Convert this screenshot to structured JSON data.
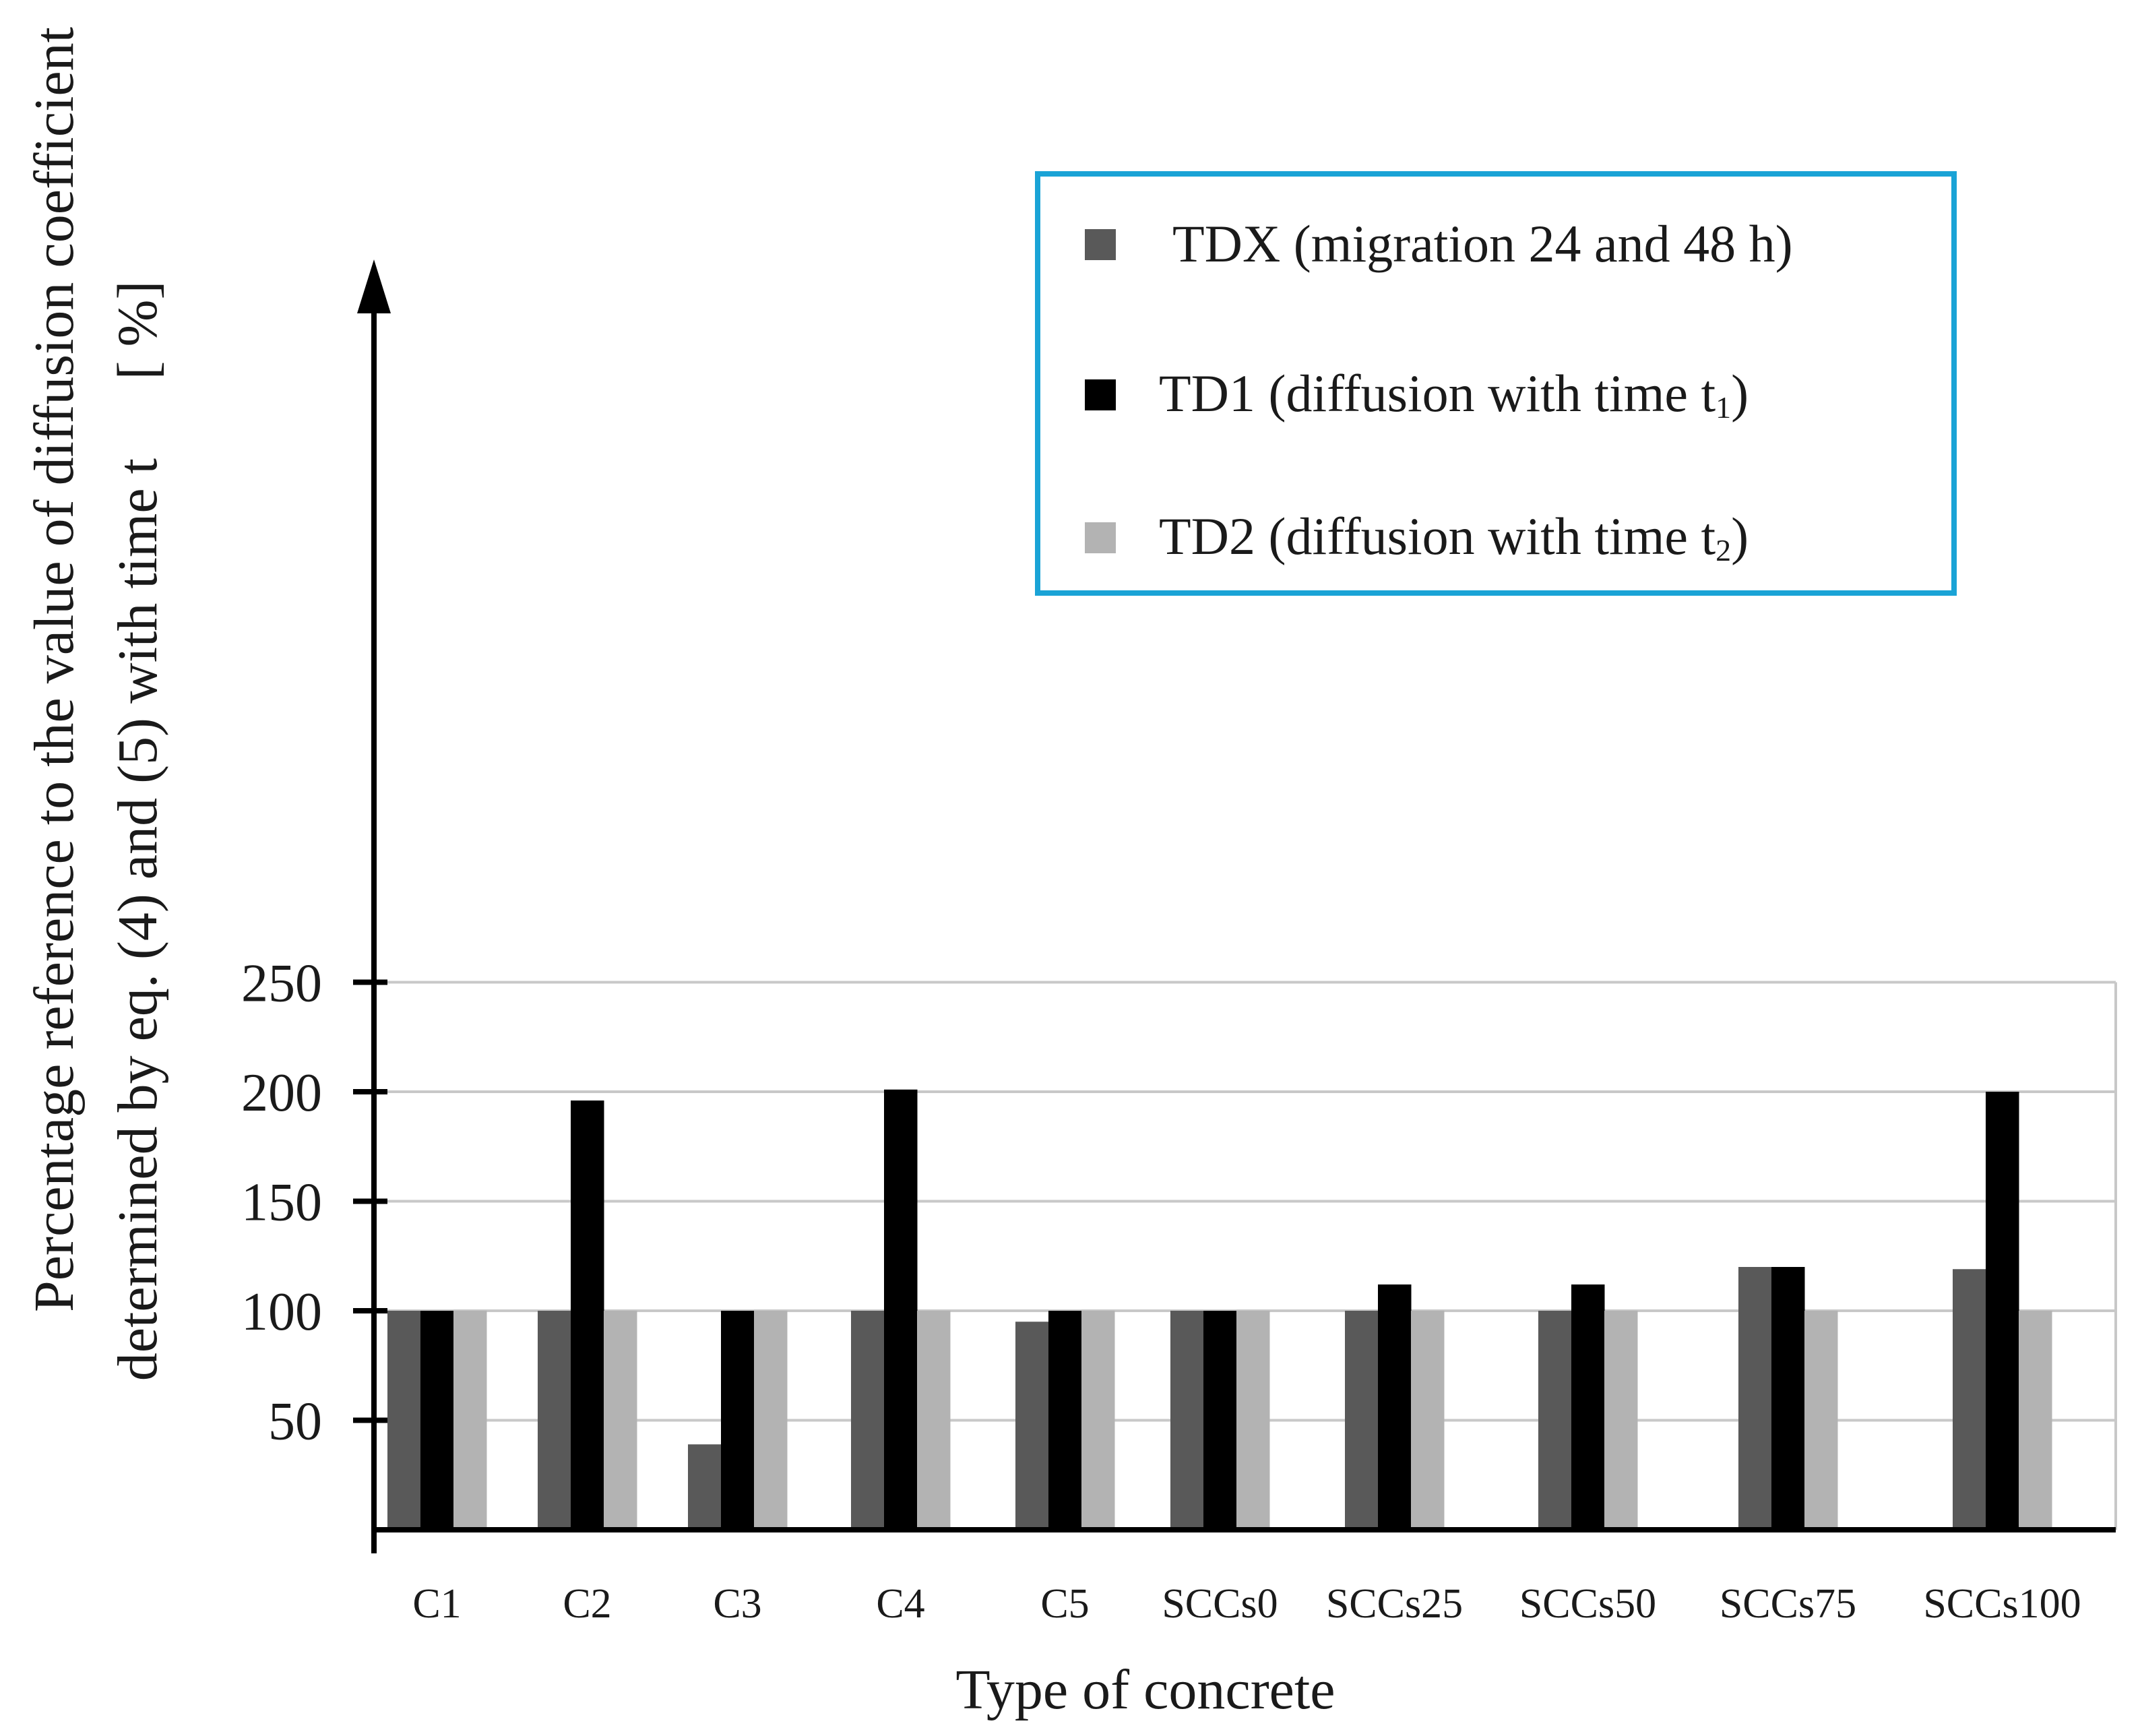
{
  "chart_data": {
    "type": "bar",
    "title": "",
    "xlabel": "Type of concrete",
    "ylabel": {
      "line1": "Percentage reference to the value of diffusion coefficient",
      "line2": "determined by eq. (4) and (5) with time t",
      "unit": "[ %]"
    },
    "ylim": [
      0,
      250
    ],
    "yticks": [
      50,
      100,
      150,
      200,
      250
    ],
    "grid": true,
    "legend_position": "top-right",
    "categories": [
      "C1",
      "C2",
      "C3",
      "C4",
      "C5",
      "SCCs0",
      "SCCs25",
      "SCCs50",
      "SCCs75",
      "SCCs100"
    ],
    "series": [
      {
        "name": "TDX (migration 24 and 48 h)",
        "color": "#595959",
        "values": [
          100,
          100,
          39,
          100,
          95,
          100,
          100,
          100,
          120,
          119
        ]
      },
      {
        "name": "TD1 (diffusion with time t1)",
        "label_text": "TD1 (diffusion with time t",
        "label_sub": "1",
        "label_end": ")",
        "color": "#000000",
        "values": [
          100,
          196,
          100,
          201,
          100,
          100,
          112,
          112,
          120,
          200
        ]
      },
      {
        "name": "TD2 (diffusion with time t2)",
        "label_text": "TD2 (diffusion with time t",
        "label_sub": "2",
        "label_end": ")",
        "color": "#b3b3b3",
        "values": [
          100,
          100,
          100,
          100,
          100,
          100,
          100,
          100,
          100,
          100
        ]
      }
    ],
    "colors": {
      "legend_border": "#1aa3d6",
      "grid": "#c8c8c8",
      "axis": "#000000"
    }
  }
}
